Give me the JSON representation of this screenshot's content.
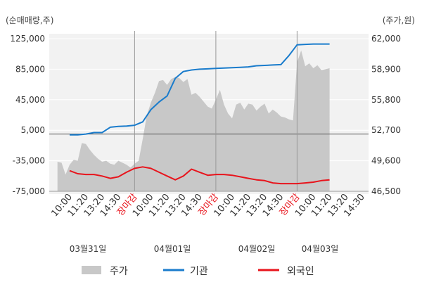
{
  "chart_data": {
    "type": "line",
    "units": {
      "left": "(순매매량,주)",
      "right": "(주가,원)"
    },
    "y_left": {
      "min": -75000,
      "max": 125000,
      "ticks": [
        "125,000",
        "85,000",
        "45,000",
        "5,000",
        "-35,000",
        "-75,000"
      ]
    },
    "y_right": {
      "min": 46500,
      "max": 62000,
      "ticks": [
        "62,000",
        "58,900",
        "55,800",
        "52,700",
        "49,600",
        "46,500"
      ]
    },
    "x_labels": [
      "10:00",
      "11:20",
      "13:20",
      "14:30",
      "장마감",
      "10:00",
      "11:20",
      "13:20",
      "14:30",
      "장마감",
      "10:00",
      "11:20",
      "13:20",
      "14:30",
      "장마감",
      "10:00",
      "11:20",
      "13:20",
      "14:30"
    ],
    "dates": [
      "03월31일",
      "04월01일",
      "04월02일",
      "04월03일"
    ],
    "legend": [
      "주가",
      "기관",
      "외국인"
    ],
    "colors": {
      "price": "#c8c8c8",
      "institution": "#1a7ccc",
      "foreign": "#e8141c",
      "close_label": "#e8141c"
    },
    "series": [
      {
        "name": "기관",
        "x": [
          0,
          0.5,
          1,
          1.5,
          2,
          2.5,
          3,
          3.5,
          4,
          4.5,
          5,
          5.5,
          6,
          6.5,
          7,
          7.5,
          8,
          8.5,
          9,
          9.5,
          10,
          10.5,
          11,
          11.5,
          12,
          12.5,
          13,
          13.5,
          14,
          14.5,
          15,
          15.5,
          16
        ],
        "values": [
          -1000,
          -1000,
          0,
          2000,
          2000,
          9000,
          10000,
          10500,
          11500,
          16000,
          32000,
          42000,
          50000,
          73000,
          82000,
          84000,
          85000,
          85500,
          86000,
          86500,
          87000,
          87500,
          88000,
          89500,
          90000,
          90500,
          91000,
          103000,
          117000,
          117500,
          118000,
          118000,
          118000
        ]
      },
      {
        "name": "외국인",
        "x": [
          0,
          0.5,
          1,
          1.5,
          2,
          2.5,
          3,
          3.5,
          4,
          4.5,
          5,
          5.5,
          6,
          6.5,
          7,
          7.5,
          8,
          8.5,
          9,
          9.5,
          10,
          10.5,
          11,
          11.5,
          12,
          12.5,
          13,
          13.5,
          14,
          14.5,
          15,
          15.5,
          16
        ],
        "values": [
          -48000,
          -52000,
          -53000,
          -53000,
          -55000,
          -58000,
          -56000,
          -50000,
          -45000,
          -43000,
          -45000,
          -50000,
          -55000,
          -60000,
          -55000,
          -46000,
          -50000,
          -54000,
          -53000,
          -53000,
          -54000,
          -56000,
          -58000,
          -60000,
          -61000,
          -64000,
          -65000,
          -65000,
          -65000,
          -64000,
          -63000,
          -61000,
          -60000
        ]
      },
      {
        "name": "주가",
        "x": [
          -0.75,
          -0.5,
          -0.25,
          0,
          0.25,
          0.5,
          0.75,
          1,
          1.25,
          1.5,
          1.75,
          2,
          2.25,
          2.5,
          2.75,
          3,
          3.25,
          3.5,
          3.75,
          4,
          4.25,
          4.5,
          4.75,
          5,
          5.25,
          5.5,
          5.75,
          6,
          6.25,
          6.5,
          6.75,
          7,
          7.25,
          7.5,
          7.75,
          8,
          8.25,
          8.5,
          8.75,
          9,
          9.25,
          9.5,
          9.75,
          10,
          10.25,
          10.5,
          10.75,
          11,
          11.25,
          11.5,
          11.75,
          12,
          12.25,
          12.5,
          12.75,
          13,
          13.25,
          13.5,
          13.75,
          14,
          14.25,
          14.5,
          14.75,
          15,
          15.25,
          15.5,
          15.75,
          16
        ],
        "values": [
          49500,
          49400,
          48200,
          49200,
          49700,
          49600,
          51400,
          51300,
          50700,
          50200,
          49800,
          49500,
          49600,
          49300,
          49200,
          49600,
          49400,
          49200,
          48900,
          49300,
          49600,
          51800,
          54200,
          55500,
          56500,
          57700,
          57800,
          57300,
          57900,
          58100,
          58000,
          57600,
          57900,
          56300,
          56500,
          56100,
          55600,
          55100,
          54900,
          55800,
          56800,
          55300,
          54400,
          53900,
          55300,
          55500,
          54800,
          55400,
          55300,
          54700,
          55100,
          55400,
          54400,
          54800,
          54500,
          54100,
          54000,
          53800,
          53700,
          59600,
          60800,
          59200,
          59500,
          59000,
          59300,
          58800,
          58900,
          59000
        ]
      }
    ]
  }
}
